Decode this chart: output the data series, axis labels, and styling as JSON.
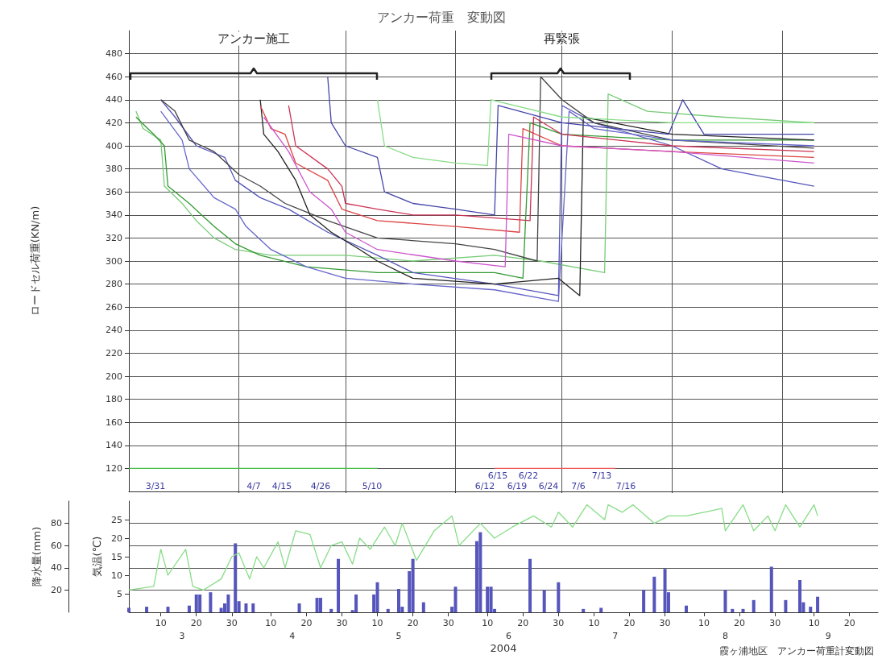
{
  "chart_data": [
    {
      "type": "line",
      "title": "アンカー荷重　変動図",
      "ylabel": "ロードセル荷重(KN/m)",
      "xlim": [
        "2004-03-01",
        "2004-09-28"
      ],
      "xticks": [
        {
          "value": "2004-04-01",
          "label": null
        },
        {
          "value": "2004-05-01",
          "label": null
        },
        {
          "value": "2004-06-01",
          "label": null
        },
        {
          "value": "2004-07-01",
          "label": null
        },
        {
          "value": "2004-08-01",
          "label": null
        },
        {
          "value": "2004-09-01",
          "label": null
        }
      ],
      "ylim": [
        100,
        500
      ],
      "yticks": [
        120,
        140,
        160,
        180,
        200,
        220,
        240,
        260,
        280,
        300,
        320,
        340,
        360,
        380,
        400,
        420,
        440,
        460,
        480
      ],
      "grid": true,
      "tick_labels": "y",
      "annotations": [
        "アンカー施工",
        "再緊張",
        "3/31",
        "4/7",
        "4/15",
        "4/26",
        "5/10",
        "6/12",
        "6/19",
        "6/24",
        "7/6",
        "7/16",
        "6/15",
        "6/22",
        "7/13"
      ],
      "series": [
        {
          "color": "#77cc77",
          "x": [
            "2004-03-03",
            "2004-03-05",
            "2004-03-10",
            "2004-03-11",
            "2004-03-16",
            "2004-03-20",
            "2004-03-25",
            "2004-03-31",
            "2004-04-10",
            "2004-05-01",
            "2004-05-20",
            "2004-06-12",
            "2004-06-25",
            "2004-07-13",
            "2004-07-14",
            "2004-07-25",
            "2004-08-15",
            "2004-09-10"
          ],
          "values": [
            430,
            415,
            405,
            365,
            350,
            335,
            320,
            310,
            305,
            305,
            300,
            305,
            300,
            290,
            445,
            430,
            425,
            420
          ]
        },
        {
          "color": "#339933",
          "x": [
            "2004-03-03",
            "2004-03-08",
            "2004-03-11",
            "2004-03-12",
            "2004-03-18",
            "2004-03-25",
            "2004-03-31",
            "2004-04-07",
            "2004-04-20",
            "2004-05-10",
            "2004-06-12",
            "2004-06-20",
            "2004-06-22",
            "2004-07-01",
            "2004-08-01",
            "2004-09-10"
          ],
          "values": [
            425,
            410,
            400,
            365,
            350,
            330,
            315,
            305,
            295,
            290,
            290,
            285,
            420,
            410,
            405,
            405
          ]
        },
        {
          "color": "#5555bb",
          "x": [
            "2004-03-10",
            "2004-03-14",
            "2004-03-20",
            "2004-03-28",
            "2004-03-31",
            "2004-04-07",
            "2004-04-15",
            "2004-04-26",
            "2004-05-10",
            "2004-05-20",
            "2004-06-12",
            "2004-06-30",
            "2004-07-01",
            "2004-07-10",
            "2004-08-01",
            "2004-08-15",
            "2004-09-10"
          ],
          "values": [
            440,
            425,
            400,
            390,
            370,
            355,
            345,
            325,
            305,
            290,
            280,
            270,
            435,
            420,
            400,
            380,
            365
          ]
        },
        {
          "color": "#444444",
          "x": [
            "2004-03-10",
            "2004-03-14",
            "2004-03-18",
            "2004-03-25",
            "2004-04-01",
            "2004-04-07",
            "2004-04-14",
            "2004-04-26",
            "2004-05-10",
            "2004-06-01",
            "2004-06-12",
            "2004-06-24",
            "2004-06-25",
            "2004-07-01",
            "2004-07-10",
            "2004-08-01",
            "2004-09-10"
          ],
          "values": [
            440,
            430,
            405,
            395,
            375,
            365,
            350,
            335,
            320,
            315,
            310,
            300,
            460,
            440,
            420,
            405,
            398
          ]
        },
        {
          "color": "#6666cc",
          "x": [
            "2004-03-10",
            "2004-03-16",
            "2004-03-18",
            "2004-03-25",
            "2004-03-31",
            "2004-04-03",
            "2004-04-10",
            "2004-04-20",
            "2004-05-01",
            "2004-05-20",
            "2004-06-12",
            "2004-06-30",
            "2004-07-03",
            "2004-07-10",
            "2004-08-01",
            "2004-09-10"
          ],
          "values": [
            430,
            405,
            380,
            355,
            345,
            330,
            310,
            295,
            285,
            280,
            275,
            265,
            430,
            415,
            405,
            400
          ]
        },
        {
          "color": "#222222",
          "x": [
            "2004-04-07",
            "2004-04-08",
            "2004-04-12",
            "2004-04-17",
            "2004-04-21",
            "2004-04-27",
            "2004-05-05",
            "2004-05-10",
            "2004-05-20",
            "2004-06-12",
            "2004-06-30",
            "2004-07-06",
            "2004-07-07",
            "2004-08-01",
            "2004-09-10"
          ],
          "values": [
            440,
            410,
            395,
            370,
            340,
            325,
            310,
            300,
            285,
            280,
            285,
            270,
            425,
            410,
            405
          ]
        },
        {
          "color": "#dd4444",
          "x": [
            "2004-04-07",
            "2004-04-10",
            "2004-04-14",
            "2004-04-17",
            "2004-04-26",
            "2004-04-30",
            "2004-05-10",
            "2004-06-01",
            "2004-06-19",
            "2004-06-20",
            "2004-07-01",
            "2004-08-01",
            "2004-09-10"
          ],
          "values": [
            435,
            415,
            410,
            385,
            370,
            345,
            335,
            330,
            325,
            415,
            400,
            395,
            390
          ]
        },
        {
          "color": "#cc55cc",
          "x": [
            "2004-04-08",
            "2004-04-15",
            "2004-04-21",
            "2004-04-27",
            "2004-05-01",
            "2004-05-10",
            "2004-06-01",
            "2004-06-15",
            "2004-06-16",
            "2004-07-01",
            "2004-08-01",
            "2004-09-10"
          ],
          "values": [
            425,
            395,
            360,
            345,
            325,
            310,
            300,
            295,
            410,
            400,
            395,
            385
          ]
        },
        {
          "color": "#cc3355",
          "x": [
            "2004-04-15",
            "2004-04-17",
            "2004-04-26",
            "2004-04-30",
            "2004-05-01",
            "2004-05-10",
            "2004-05-20",
            "2004-06-01",
            "2004-06-22",
            "2004-06-23",
            "2004-07-01",
            "2004-08-01",
            "2004-09-10"
          ],
          "values": [
            435,
            400,
            380,
            365,
            350,
            345,
            340,
            340,
            335,
            425,
            410,
            400,
            395
          ]
        },
        {
          "color": "#4444aa",
          "x": [
            "2004-04-26",
            "2004-04-27",
            "2004-05-01",
            "2004-05-10",
            "2004-05-12",
            "2004-05-20",
            "2004-06-01",
            "2004-06-12",
            "2004-06-13",
            "2004-07-01",
            "2004-07-31",
            "2004-08-04",
            "2004-08-10",
            "2004-09-10"
          ],
          "values": [
            460,
            420,
            400,
            390,
            360,
            350,
            345,
            340,
            435,
            420,
            410,
            440,
            410,
            410
          ]
        },
        {
          "color": "#88dd88",
          "x": [
            "2004-05-10",
            "2004-05-12",
            "2004-05-20",
            "2004-06-01",
            "2004-06-10",
            "2004-06-11",
            "2004-07-01",
            "2004-08-01",
            "2004-09-10"
          ],
          "values": [
            440,
            400,
            390,
            385,
            383,
            440,
            425,
            420,
            420
          ]
        },
        {
          "color": "#44bb44",
          "x": [
            "2004-03-01",
            "2004-05-10"
          ],
          "values": [
            120,
            120
          ]
        },
        {
          "color": "#ee5555",
          "x": [
            "2004-06-12",
            "2004-07-16"
          ],
          "values": [
            120,
            120
          ]
        }
      ]
    },
    {
      "type": "bar",
      "ylabel": "降水量(mm)",
      "y2label": "気温(℃)",
      "xlabel": "2004",
      "xlim": [
        "2004-03-01",
        "2004-09-28"
      ],
      "xticks": [
        {
          "value": "2004-03-10",
          "label": "10"
        },
        {
          "value": "2004-03-20",
          "label": "20"
        },
        {
          "value": "2004-03-30",
          "label": "30"
        },
        {
          "value": "2004-04-10",
          "label": "10"
        },
        {
          "value": "2004-04-20",
          "label": "20"
        },
        {
          "value": "2004-04-30",
          "label": "30"
        },
        {
          "value": "2004-05-10",
          "label": "10"
        },
        {
          "value": "2004-05-20",
          "label": "20"
        },
        {
          "value": "2004-05-30",
          "label": "30"
        },
        {
          "value": "2004-06-10",
          "label": "10"
        },
        {
          "value": "2004-06-20",
          "label": "20"
        },
        {
          "value": "2004-06-30",
          "label": "30"
        },
        {
          "value": "2004-07-10",
          "label": "10"
        },
        {
          "value": "2004-07-20",
          "label": "20"
        },
        {
          "value": "2004-07-30",
          "label": "30"
        },
        {
          "value": "2004-08-10",
          "label": "10"
        },
        {
          "value": "2004-08-20",
          "label": "20"
        },
        {
          "value": "2004-08-30",
          "label": "30"
        },
        {
          "value": "2004-09-10",
          "label": "10"
        },
        {
          "value": "2004-09-20",
          "label": "20"
        }
      ],
      "x2lim": [
        "2004-03-01",
        "2004-09-28"
      ],
      "x2ticks": [
        {
          "value": "2004-03-16",
          "label": "3"
        },
        {
          "value": "2004-04-16",
          "label": "4"
        },
        {
          "value": "2004-05-16",
          "label": "5"
        },
        {
          "value": "2004-06-16",
          "label": "6"
        },
        {
          "value": "2004-07-16",
          "label": "7"
        },
        {
          "value": "2004-08-16",
          "label": "8"
        },
        {
          "value": "2004-09-14",
          "label": "9"
        }
      ],
      "ylim": [
        0,
        100
      ],
      "yticks": [
        20,
        40,
        60,
        80
      ],
      "y2lim": [
        0,
        30
      ],
      "y2ticks": [
        5,
        10,
        15,
        20,
        25
      ],
      "grid": "y",
      "annotations": [
        "霞ヶ浦地区　アンカー荷重計変動図"
      ],
      "series": [
        {
          "type": "bar",
          "color": "#5555bb",
          "x": [
            "2004-03-01",
            "2004-03-06",
            "2004-03-12",
            "2004-03-18",
            "2004-03-20",
            "2004-03-21",
            "2004-03-24",
            "2004-03-27",
            "2004-03-28",
            "2004-03-29",
            "2004-03-31",
            "2004-04-01",
            "2004-04-03",
            "2004-04-05",
            "2004-04-18",
            "2004-04-23",
            "2004-04-24",
            "2004-04-27",
            "2004-04-29",
            "2004-05-03",
            "2004-05-04",
            "2004-05-09",
            "2004-05-10",
            "2004-05-13",
            "2004-05-16",
            "2004-05-17",
            "2004-05-19",
            "2004-05-20",
            "2004-05-23",
            "2004-05-31",
            "2004-06-01",
            "2004-06-07",
            "2004-06-08",
            "2004-06-10",
            "2004-06-11",
            "2004-06-12",
            "2004-06-22",
            "2004-06-26",
            "2004-06-30",
            "2004-07-07",
            "2004-07-12",
            "2004-07-24",
            "2004-07-27",
            "2004-07-30",
            "2004-07-31",
            "2004-08-05",
            "2004-08-16",
            "2004-08-18",
            "2004-08-21",
            "2004-08-24",
            "2004-08-29",
            "2004-09-02",
            "2004-09-06",
            "2004-09-07",
            "2004-09-09",
            "2004-09-11"
          ],
          "values": [
            4,
            5,
            5,
            6,
            16,
            16,
            18,
            4,
            8,
            16,
            62,
            10,
            8,
            8,
            8,
            13,
            13,
            3,
            48,
            2,
            16,
            16,
            27,
            3,
            21,
            5,
            37,
            48,
            9,
            5,
            23,
            64,
            72,
            23,
            23,
            3,
            48,
            20,
            27,
            3,
            4,
            20,
            32,
            39,
            18,
            6,
            20,
            3,
            3,
            11,
            41,
            11,
            29,
            9,
            5,
            14
          ]
        },
        {
          "type": "line",
          "axis": "y2",
          "color": "#88dd88",
          "x": [
            "2004-03-01",
            "2004-03-08",
            "2004-03-10",
            "2004-03-12",
            "2004-03-17",
            "2004-03-19",
            "2004-03-22",
            "2004-03-27",
            "2004-03-30",
            "2004-04-01",
            "2004-04-04",
            "2004-04-06",
            "2004-04-08",
            "2004-04-12",
            "2004-04-14",
            "2004-04-17",
            "2004-04-21",
            "2004-04-24",
            "2004-04-27",
            "2004-04-30",
            "2004-05-03",
            "2004-05-05",
            "2004-05-08",
            "2004-05-12",
            "2004-05-15",
            "2004-05-17",
            "2004-05-21",
            "2004-05-26",
            "2004-05-31",
            "2004-06-02",
            "2004-06-08",
            "2004-06-12",
            "2004-06-17",
            "2004-06-23",
            "2004-06-28",
            "2004-06-30",
            "2004-07-04",
            "2004-07-08",
            "2004-07-13",
            "2004-07-14",
            "2004-07-18",
            "2004-07-21",
            "2004-07-27",
            "2004-07-31",
            "2004-08-05",
            "2004-08-10",
            "2004-08-15",
            "2004-08-16",
            "2004-08-21",
            "2004-08-24",
            "2004-08-28",
            "2004-08-30",
            "2004-09-02",
            "2004-09-06",
            "2004-09-10",
            "2004-09-11"
          ],
          "values": [
            6,
            7,
            17,
            10,
            17,
            7,
            6,
            9,
            15,
            16,
            9,
            15,
            12,
            19,
            12,
            22,
            21,
            12,
            18,
            19,
            13,
            20,
            17,
            23,
            18,
            24,
            14,
            22,
            26,
            18,
            24,
            20,
            23,
            26,
            23,
            27,
            23,
            29,
            25,
            29,
            27,
            29,
            24,
            26,
            26,
            27,
            28,
            22,
            29,
            22,
            26,
            22,
            29,
            23,
            29,
            26
          ]
        }
      ]
    }
  ]
}
